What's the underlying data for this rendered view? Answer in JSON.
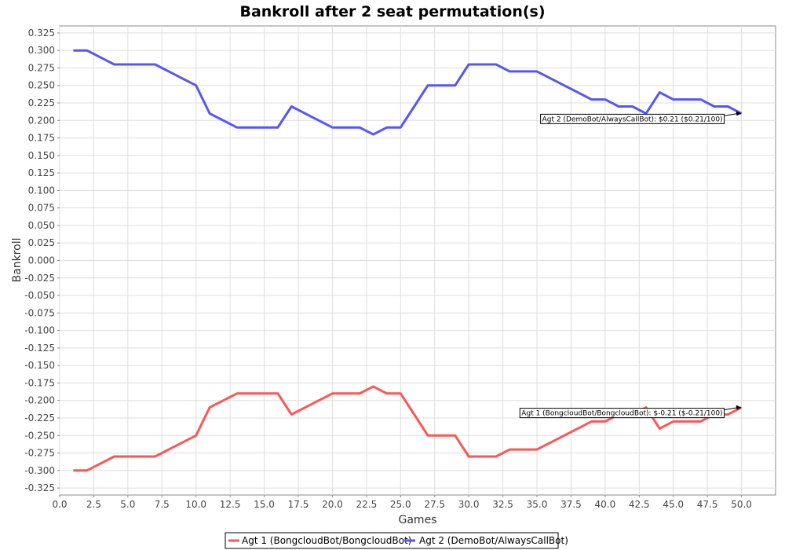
{
  "chart_data": {
    "type": "line",
    "title": "Bankroll after 2 seat permutation(s)",
    "xlabel": "Games",
    "ylabel": "Bankroll",
    "xlim": [
      0.0,
      52.5
    ],
    "ylim": [
      -0.335,
      0.335
    ],
    "x_ticks": [
      0.0,
      2.5,
      5.0,
      7.5,
      10.0,
      12.5,
      15.0,
      17.5,
      20.0,
      22.5,
      25.0,
      27.5,
      30.0,
      32.5,
      35.0,
      37.5,
      40.0,
      42.5,
      45.0,
      47.5,
      50.0
    ],
    "x_tick_labels": [
      "0.0",
      "2.5",
      "5.0",
      "7.5",
      "10.0",
      "12.5",
      "15.0",
      "17.5",
      "20.0",
      "22.5",
      "25.0",
      "27.5",
      "30.0",
      "32.5",
      "35.0",
      "37.5",
      "40.0",
      "42.5",
      "45.0",
      "47.5",
      "50.0"
    ],
    "y_ticks": [
      0.325,
      0.3,
      0.275,
      0.25,
      0.225,
      0.2,
      0.175,
      0.15,
      0.125,
      0.1,
      0.075,
      0.05,
      0.025,
      0.0,
      -0.025,
      -0.05,
      -0.075,
      -0.1,
      -0.125,
      -0.15,
      -0.175,
      -0.2,
      -0.225,
      -0.25,
      -0.275,
      -0.3,
      -0.325
    ],
    "y_tick_labels": [
      "0.325",
      "0.300",
      "0.275",
      "0.250",
      "0.225",
      "0.200",
      "0.175",
      "0.150",
      "0.125",
      "0.100",
      "0.075",
      "0.050",
      "0.025",
      "0.000",
      "-0.025",
      "-0.050",
      "-0.075",
      "-0.100",
      "-0.125",
      "-0.150",
      "-0.175",
      "-0.200",
      "-0.225",
      "-0.250",
      "-0.275",
      "-0.300",
      "-0.325"
    ],
    "grid": true,
    "legend_position": "bottom-center",
    "x": [
      1,
      2,
      3,
      4,
      5,
      6,
      7,
      8,
      9,
      10,
      11,
      12,
      13,
      14,
      15,
      16,
      17,
      18,
      19,
      20,
      21,
      22,
      23,
      24,
      25,
      26,
      27,
      28,
      29,
      30,
      31,
      32,
      33,
      34,
      35,
      36,
      37,
      38,
      39,
      40,
      41,
      42,
      43,
      44,
      45,
      46,
      47,
      48,
      49,
      50
    ],
    "series": [
      {
        "name": "Agt 1 (BongcloudBot/BongcloudBot)",
        "color": "#ff5555",
        "values": [
          -0.3,
          -0.3,
          -0.29,
          -0.28,
          -0.28,
          -0.28,
          -0.28,
          -0.27,
          -0.26,
          -0.25,
          -0.21,
          -0.2,
          -0.19,
          -0.19,
          -0.19,
          -0.19,
          -0.22,
          -0.21,
          -0.2,
          -0.19,
          -0.19,
          -0.19,
          -0.18,
          -0.19,
          -0.19,
          -0.22,
          -0.25,
          -0.25,
          -0.25,
          -0.28,
          -0.28,
          -0.28,
          -0.27,
          -0.27,
          -0.27,
          -0.26,
          -0.25,
          -0.24,
          -0.23,
          -0.23,
          -0.22,
          -0.22,
          -0.21,
          -0.24,
          -0.23,
          -0.23,
          -0.23,
          -0.22,
          -0.22,
          -0.21
        ]
      },
      {
        "name": "Agt 2 (DemoBot/AlwaysCallBot)",
        "color": "#5555ff",
        "values": [
          0.3,
          0.3,
          0.29,
          0.28,
          0.28,
          0.28,
          0.28,
          0.27,
          0.26,
          0.25,
          0.21,
          0.2,
          0.19,
          0.19,
          0.19,
          0.19,
          0.22,
          0.21,
          0.2,
          0.19,
          0.19,
          0.19,
          0.18,
          0.19,
          0.19,
          0.22,
          0.25,
          0.25,
          0.25,
          0.28,
          0.28,
          0.28,
          0.27,
          0.27,
          0.27,
          0.26,
          0.25,
          0.24,
          0.23,
          0.23,
          0.22,
          0.22,
          0.21,
          0.24,
          0.23,
          0.23,
          0.23,
          0.22,
          0.22,
          0.21
        ]
      }
    ],
    "annotations": [
      {
        "text": "Agt 2 (DemoBot/AlwaysCallBot): $0.21 ($0.21/100)",
        "series": 1,
        "x": 50,
        "y": 0.21
      },
      {
        "text": "Agt 1 (BongcloudBot/BongcloudBot): $-0.21 ($-0.21/100)",
        "series": 0,
        "x": 50,
        "y": -0.21
      }
    ]
  }
}
